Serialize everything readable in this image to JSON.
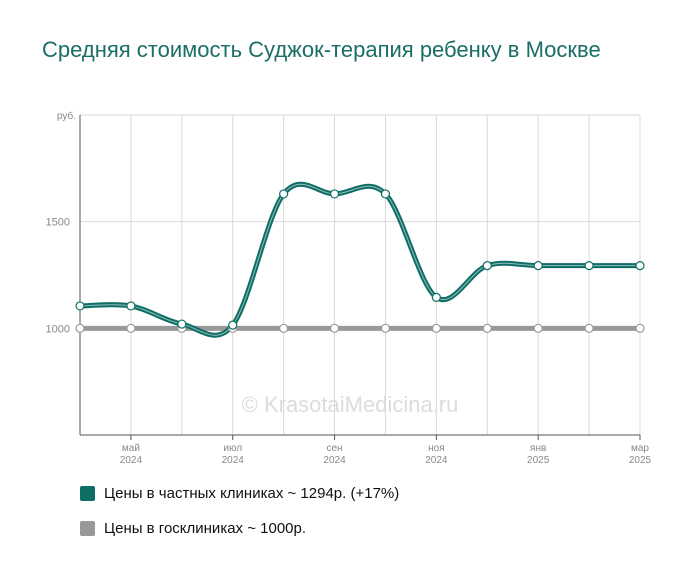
{
  "title": "Средняя стоимость Суджок-терапия ребенку в Москве",
  "watermark": "© KrasotaiMedicina.ru",
  "colors": {
    "private": "#0f6e66",
    "public": "#999999",
    "grid": "#d9d9d9",
    "axis": "#555555",
    "ticktext": "#888888"
  },
  "legend": [
    {
      "label": "Цены в частных клиниках ~ 1294р. (+17%)",
      "color": "#0f6e66"
    },
    {
      "label": "Цены в госклиниках ~ 1000р.",
      "color": "#999999"
    }
  ],
  "chart_data": {
    "type": "line",
    "ylabel": "руб.",
    "ylim": [
      500,
      2000
    ],
    "yticks": [
      1000,
      1500
    ],
    "grid": true,
    "legend_position": "bottom",
    "x_ticks": [
      {
        "month": "май",
        "year": "2024"
      },
      {
        "month": "июл",
        "year": "2024"
      },
      {
        "month": "сен",
        "year": "2024"
      },
      {
        "month": "ноя",
        "year": "2024"
      },
      {
        "month": "янв",
        "year": "2025"
      },
      {
        "month": "мар",
        "year": "2025"
      }
    ],
    "x": [
      "2024-04",
      "2024-05",
      "2024-06",
      "2024-07",
      "2024-08",
      "2024-09",
      "2024-10",
      "2024-11",
      "2024-12",
      "2025-01",
      "2025-02",
      "2025-03"
    ],
    "series": [
      {
        "name": "Цены в частных клиниках ~ 1294р. (+17%)",
        "values": [
          1105,
          1105,
          1020,
          1015,
          1630,
          1630,
          1630,
          1145,
          1294,
          1294,
          1294,
          1294
        ]
      },
      {
        "name": "Цены в госклиниках ~ 1000р.",
        "values": [
          1000,
          1000,
          1000,
          1000,
          1000,
          1000,
          1000,
          1000,
          1000,
          1000,
          1000,
          1000
        ]
      }
    ]
  }
}
